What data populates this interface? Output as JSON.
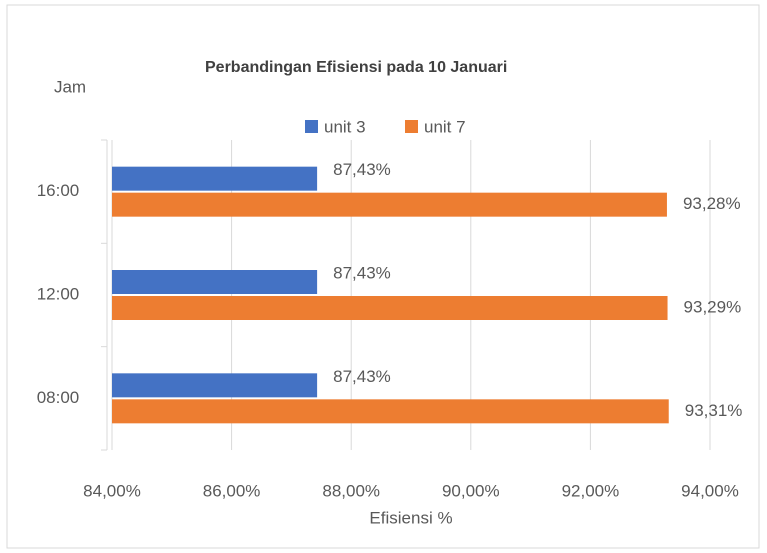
{
  "chart_data": {
    "type": "bar",
    "orientation": "horizontal",
    "title": "Perbandingan Efisiensi pada 10 Januari",
    "y_label": "Jam",
    "x_label": "Efisiensi %",
    "categories": [
      "16:00",
      "12:00",
      "08:00"
    ],
    "series": [
      {
        "name": "unit 3",
        "color": "#4472c4",
        "values": [
          87.43,
          87.43,
          87.43
        ],
        "value_labels": [
          "87,43%",
          "87,43%",
          "87,43%"
        ]
      },
      {
        "name": "unit 7",
        "color": "#ed7d31",
        "values": [
          93.28,
          93.29,
          93.31
        ],
        "value_labels": [
          "93,28%",
          "93,29%",
          "93,31%"
        ]
      }
    ],
    "xlim": [
      84,
      94
    ],
    "xticks": [
      {
        "value": 84,
        "label": "84,00%"
      },
      {
        "value": 86,
        "label": "86,00%"
      },
      {
        "value": 88,
        "label": "88,00%"
      },
      {
        "value": 90,
        "label": "90,00%"
      },
      {
        "value": 92,
        "label": "92,00%"
      },
      {
        "value": 94,
        "label": "94,00%"
      }
    ],
    "grid": true
  }
}
